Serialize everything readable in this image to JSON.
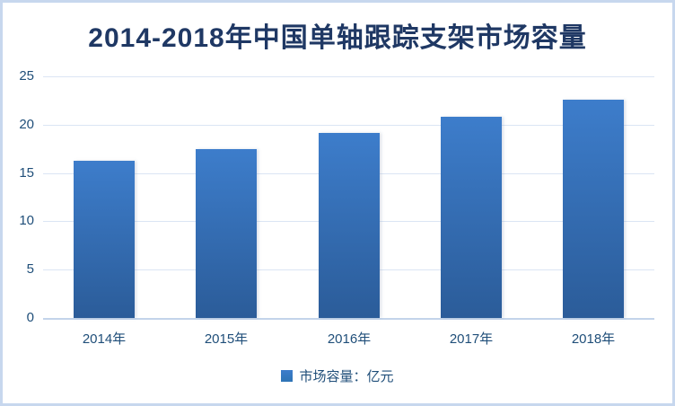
{
  "chart_data": {
    "type": "bar",
    "title": "2014-2018年中国单轴跟踪支架市场容量",
    "categories": [
      "2014年",
      "2015年",
      "2016年",
      "2017年",
      "2018年"
    ],
    "values": [
      16.3,
      17.5,
      19.1,
      20.8,
      22.6
    ],
    "series_name": "市场容量",
    "legend_label": "市场容量：亿元",
    "xlabel": "",
    "ylabel": "",
    "ylim": [
      0,
      25
    ],
    "yticks": [
      0,
      5,
      10,
      15,
      20,
      25
    ],
    "grid": true,
    "legend_position": "bottom",
    "colors": {
      "title": "#1f3864",
      "axis_labels": "#1f4e79",
      "gridline": "#dbe5f4",
      "axis_line": "#c3d4ea",
      "bar_top": "#3d7dcb",
      "bar_bottom": "#2b5c99",
      "legend_swatch": "#2e74b5",
      "frame_border": "#c7d7ee"
    }
  }
}
